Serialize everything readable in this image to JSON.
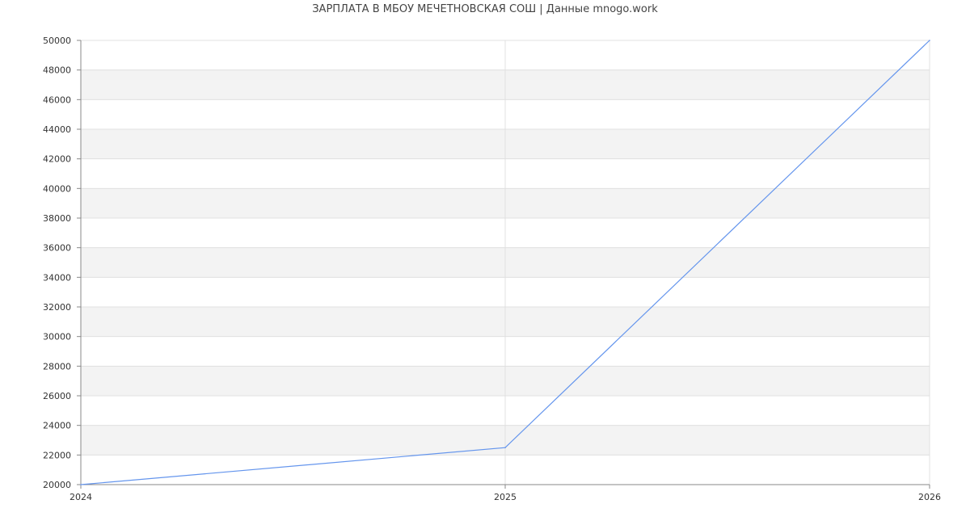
{
  "chart_data": {
    "type": "line",
    "title": "ЗАРПЛАТА В МБОУ МЕЧЕТНОВСКАЯ СОШ | Данные mnogo.work",
    "x": [
      "2024",
      "2025",
      "2026"
    ],
    "series": [
      {
        "values": [
          20000,
          22500,
          50000
        ],
        "color": "#6495ed"
      }
    ],
    "ylim": [
      20000,
      50000
    ],
    "ytick_step": 2000,
    "grid": true,
    "band_color": "#f3f3f3",
    "grid_color": "#e0e0e0",
    "axis_color": "#888888"
  }
}
